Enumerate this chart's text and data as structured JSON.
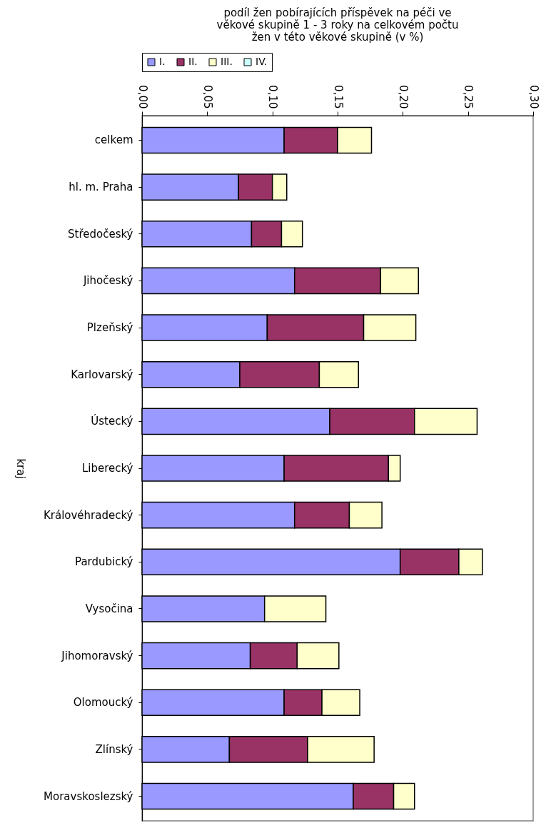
{
  "chart_data": {
    "type": "bar",
    "orientation": "horizontal",
    "stacked": true,
    "title": "podíl žen pobírajících příspěvek na péči ve\nvěkové skupině 1 - 3 roky na celkovém počtu\nžen v této věkové skupině (v %)",
    "ylabel": "kraj",
    "categories": [
      "celkem",
      "hl. m. Praha",
      "Středočeský",
      "Jihočeský",
      "Plzeňský",
      "Karlovarský",
      "Ústecký",
      "Liberecký",
      "Královéhradecký",
      "Pardubický",
      "Vysočina",
      "Jihomoravský",
      "Olomoucký",
      "Zlínský",
      "Moravskoslezský"
    ],
    "series": [
      {
        "name": "I.",
        "color": "#9999ff",
        "values": [
          0.109,
          0.074,
          0.084,
          0.117,
          0.096,
          0.075,
          0.144,
          0.109,
          0.117,
          0.198,
          0.094,
          0.083,
          0.109,
          0.067,
          0.162
        ]
      },
      {
        "name": "II.",
        "color": "#993366",
        "values": [
          0.041,
          0.026,
          0.023,
          0.066,
          0.074,
          0.061,
          0.065,
          0.08,
          0.042,
          0.045,
          0,
          0.036,
          0.029,
          0.06,
          0.031
        ]
      },
      {
        "name": "III.",
        "color": "#ffffcc",
        "values": [
          0.026,
          0.011,
          0.016,
          0.029,
          0.04,
          0.03,
          0.048,
          0.009,
          0.025,
          0.018,
          0.047,
          0.032,
          0.029,
          0.051,
          0.016
        ]
      },
      {
        "name": "IV.",
        "color": "#ccffff",
        "values": [
          0,
          0,
          0,
          0,
          0,
          0,
          0,
          0,
          0,
          0,
          0,
          0,
          0,
          0,
          0
        ]
      }
    ],
    "xlim": [
      0,
      0.3
    ],
    "xticks": [
      {
        "value": 0,
        "label": "0,00"
      },
      {
        "value": 0.05,
        "label": "0,05"
      },
      {
        "value": 0.1,
        "label": "0,10"
      },
      {
        "value": 0.15,
        "label": "0,15"
      },
      {
        "value": 0.2,
        "label": "0,20"
      },
      {
        "value": 0.25,
        "label": "0,25"
      },
      {
        "value": 0.3,
        "label": "0,30"
      }
    ],
    "legend": "top left"
  }
}
